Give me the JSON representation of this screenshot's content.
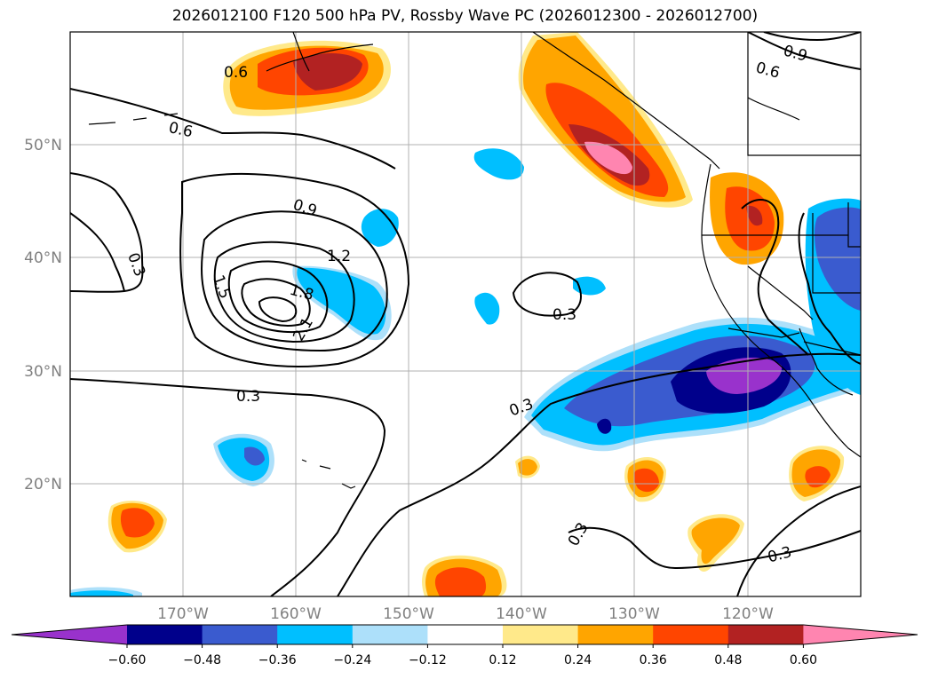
{
  "title": "2026012100 F120 500 hPa PV, Rossby Wave PC (2026012300 - 2026012700)",
  "map": {
    "lat_labels": [
      "50°N",
      "40°N",
      "30°N",
      "20°N"
    ],
    "lon_labels": [
      "170°W",
      "160°W",
      "150°W",
      "140°W",
      "130°W",
      "120°W"
    ],
    "contour_labels": [
      "0.6",
      "0.6",
      "0.9",
      "0.6",
      "0.9",
      "1.2",
      "1.5",
      "1.8",
      "2.1",
      "0.3",
      "0.3",
      "0.3",
      "0.3",
      "0.3",
      "0.3"
    ],
    "contour_color": "#000000",
    "coastline_color": "#000000"
  },
  "colorbar": {
    "ticks": [
      "−0.60",
      "−0.48",
      "−0.36",
      "−0.24",
      "−0.12",
      "0.12",
      "0.24",
      "0.36",
      "0.48",
      "0.60"
    ],
    "colors": [
      "#9932CC",
      "#00008B",
      "#3A5BCF",
      "#00BFFF",
      "#ADE0FA",
      "#FFFFFF",
      "#FFE98A",
      "#FFA500",
      "#FF4500",
      "#B22222",
      "#FF85B0"
    ]
  }
}
